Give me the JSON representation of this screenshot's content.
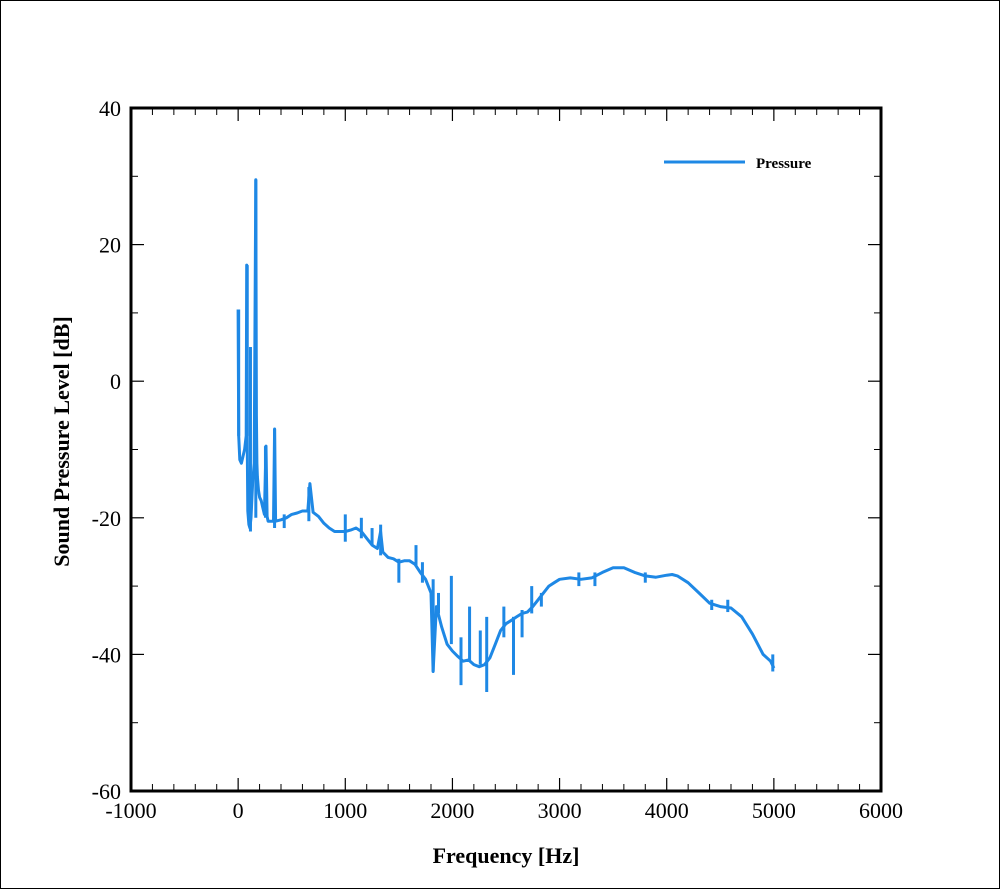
{
  "chart_data": {
    "type": "line",
    "xlabel": "Frequency [Hz]",
    "ylabel": "Sound Pressure Level [dB]",
    "xlim": [
      -1000,
      6000
    ],
    "ylim": [
      -60,
      40
    ],
    "x_ticks": [
      -1000,
      0,
      1000,
      2000,
      3000,
      4000,
      5000,
      6000
    ],
    "y_ticks": [
      -60,
      -40,
      -20,
      0,
      20,
      40
    ],
    "x_tick_labels": [
      "-1000",
      "0",
      "1000",
      "2000",
      "3000",
      "4000",
      "5000",
      "6000"
    ],
    "y_tick_labels": [
      "-60",
      "-40",
      "-20",
      "0",
      "20",
      "40"
    ],
    "grid": false,
    "legend_position": "top-right",
    "colors": {
      "series": "#1e88e5",
      "axis": "#000000"
    },
    "series": [
      {
        "name": "Pressure",
        "x": [
          0,
          5,
          15,
          30,
          45,
          60,
          75,
          80,
          85,
          90,
          100,
          110,
          120,
          135,
          150,
          165,
          170,
          175,
          180,
          190,
          200,
          215,
          230,
          245,
          260,
          270,
          280,
          300,
          330,
          340,
          350,
          400,
          450,
          500,
          550,
          600,
          650,
          670,
          700,
          750,
          800,
          850,
          900,
          950,
          1000,
          1050,
          1100,
          1150,
          1200,
          1250,
          1300,
          1330,
          1350,
          1400,
          1450,
          1500,
          1550,
          1600,
          1650,
          1700,
          1750,
          1800,
          1820,
          1850,
          1900,
          1950,
          2000,
          2050,
          2100,
          2150,
          2200,
          2250,
          2300,
          2350,
          2400,
          2450,
          2500,
          2550,
          2600,
          2650,
          2700,
          2750,
          2800,
          2850,
          2900,
          2950,
          3000,
          3100,
          3200,
          3300,
          3400,
          3500,
          3600,
          3700,
          3800,
          3900,
          4000,
          4050,
          4100,
          4200,
          4300,
          4400,
          4500,
          4600,
          4700,
          4800,
          4900,
          4970,
          5000
        ],
        "y": [
          10.5,
          -8,
          -11.5,
          -12,
          -11,
          -10,
          -8,
          17,
          -10,
          -19,
          -21,
          -21.5,
          -20,
          -15,
          -12,
          29.5,
          -5,
          -12,
          -14,
          -16,
          -17,
          -17.5,
          -18.5,
          -19.5,
          -9.5,
          -19.8,
          -20.5,
          -20.5,
          -20.5,
          -7,
          -20.5,
          -20.3,
          -20,
          -19.5,
          -19.3,
          -19,
          -19,
          -15,
          -19.2,
          -19.8,
          -20.8,
          -21.5,
          -22,
          -22,
          -22,
          -21.8,
          -21.5,
          -22,
          -23,
          -24,
          -24.5,
          -22,
          -25,
          -25.8,
          -26,
          -26.5,
          -26.3,
          -26.3,
          -26.8,
          -28,
          -29,
          -31,
          -42.5,
          -33,
          -36,
          -38.5,
          -39.5,
          -40.3,
          -41,
          -40.8,
          -41.5,
          -41.8,
          -41.5,
          -40.5,
          -38.5,
          -36.5,
          -35.5,
          -35,
          -34.5,
          -34,
          -33.8,
          -33,
          -32,
          -31,
          -30,
          -29.5,
          -29,
          -28.8,
          -29,
          -28.8,
          -28,
          -27.3,
          -27.3,
          -28,
          -28.5,
          -28.7,
          -28.4,
          -28.3,
          -28.5,
          -29.5,
          -31,
          -32.5,
          -33,
          -33.2,
          -34.5,
          -37,
          -40,
          -41,
          -42
        ]
      }
    ],
    "spikes": [
      {
        "x": 5,
        "top": 10.5,
        "bottom": -8
      },
      {
        "x": 85,
        "top": 17,
        "bottom": -8
      },
      {
        "x": 115,
        "top": 5,
        "bottom": -22
      },
      {
        "x": 165,
        "top": 29.5,
        "bottom": -20
      },
      {
        "x": 255,
        "top": -9.5,
        "bottom": -20
      },
      {
        "x": 340,
        "top": -7,
        "bottom": -21.5
      },
      {
        "x": 430,
        "top": -19.5,
        "bottom": -21.5
      },
      {
        "x": 660,
        "top": -15.5,
        "bottom": -20.5
      },
      {
        "x": 1000,
        "top": -19.5,
        "bottom": -23.5
      },
      {
        "x": 1150,
        "top": -20,
        "bottom": -23
      },
      {
        "x": 1250,
        "top": -21.5,
        "bottom": -24
      },
      {
        "x": 1330,
        "top": -21,
        "bottom": -25.5
      },
      {
        "x": 1500,
        "top": -26,
        "bottom": -29.5
      },
      {
        "x": 1660,
        "top": -24,
        "bottom": -27
      },
      {
        "x": 1720,
        "top": -26.5,
        "bottom": -29.5
      },
      {
        "x": 1820,
        "top": -29,
        "bottom": -42.5
      },
      {
        "x": 1870,
        "top": -31,
        "bottom": -34
      },
      {
        "x": 1990,
        "top": -28.5,
        "bottom": -38.5
      },
      {
        "x": 2080,
        "top": -37.5,
        "bottom": -44.5
      },
      {
        "x": 2160,
        "top": -33,
        "bottom": -41
      },
      {
        "x": 2260,
        "top": -36.5,
        "bottom": -41.5
      },
      {
        "x": 2320,
        "top": -34.5,
        "bottom": -45.5
      },
      {
        "x": 2480,
        "top": -33,
        "bottom": -37.5
      },
      {
        "x": 2570,
        "top": -34.5,
        "bottom": -43
      },
      {
        "x": 2650,
        "top": -33.5,
        "bottom": -37.5
      },
      {
        "x": 2740,
        "top": -30,
        "bottom": -34
      },
      {
        "x": 2830,
        "top": -31,
        "bottom": -33
      },
      {
        "x": 3180,
        "top": -28,
        "bottom": -30
      },
      {
        "x": 3330,
        "top": -28,
        "bottom": -30
      },
      {
        "x": 3800,
        "top": -28,
        "bottom": -29.5
      },
      {
        "x": 4420,
        "top": -32,
        "bottom": -33.5
      },
      {
        "x": 4570,
        "top": -32,
        "bottom": -33.8
      },
      {
        "x": 4990,
        "top": -40,
        "bottom": -42.5
      }
    ]
  }
}
